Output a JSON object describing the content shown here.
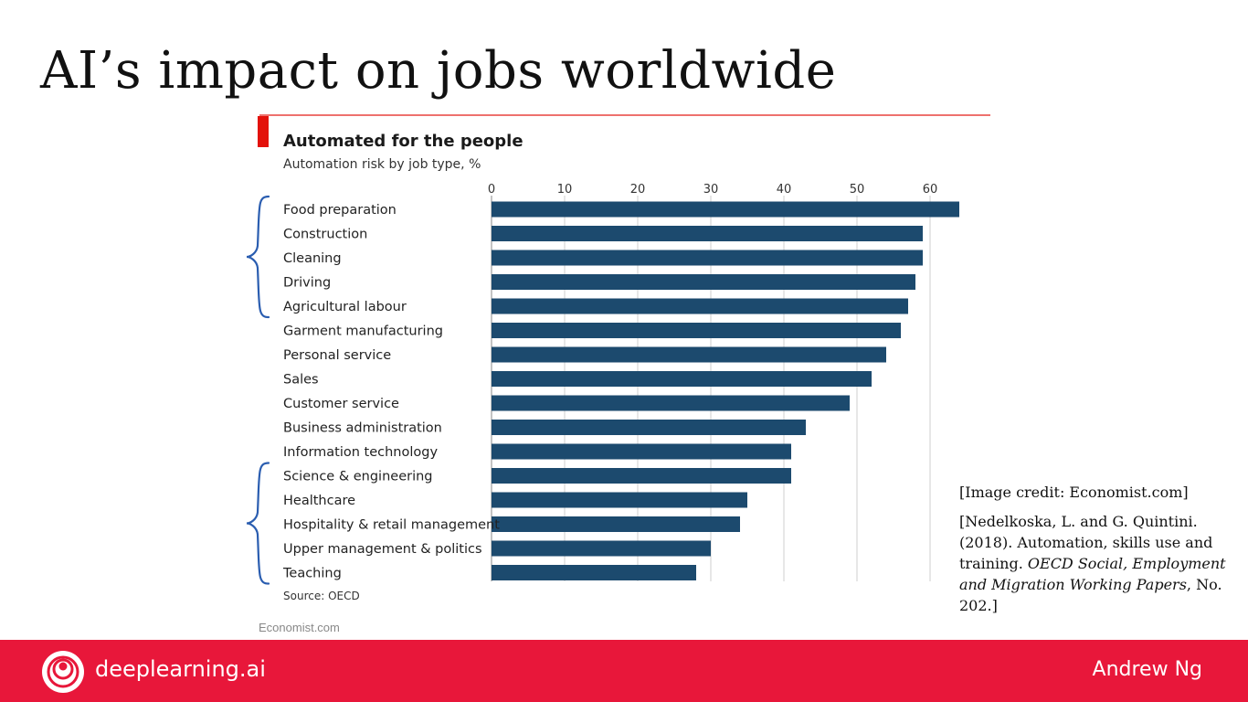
{
  "slide": {
    "title": "AI’s impact on jobs worldwide",
    "credit": "[Image credit: Economist.com]",
    "citation": {
      "before": "[Nedelkoska, L. and G. Quintini. (2018). Automation, skills use and training.",
      "journal": "OECD Social, Employment and Migration Working Papers",
      "after": ", No. 202.]"
    }
  },
  "footer": {
    "brand": "deeplearning.ai",
    "author": "Andrew Ng",
    "logo_icon": "deeplearning-ai-logo-icon"
  },
  "economist_mark": "Economist.com",
  "colors": {
    "bar": "#1c4a6e",
    "accent": "#e3120b",
    "footer": "#e8173a",
    "bracket": "#2a5db0"
  },
  "chart_data": {
    "type": "bar",
    "orientation": "horizontal",
    "title": "Automated for the people",
    "subtitle": "Automation risk by job type, %",
    "source": "Source: OECD",
    "xlim": [
      0,
      70
    ],
    "ticks": [
      0,
      10,
      20,
      30,
      40,
      50,
      60
    ],
    "grid": true,
    "categories": [
      "Food preparation",
      "Construction",
      "Cleaning",
      "Driving",
      "Agricultural labour",
      "Garment manufacturing",
      "Personal service",
      "Sales",
      "Customer service",
      "Business administration",
      "Information technology",
      "Science & engineering",
      "Healthcare",
      "Hospitality & retail management",
      "Upper management & politics",
      "Teaching"
    ],
    "values": [
      64,
      59,
      59,
      58,
      57,
      56,
      54,
      52,
      49,
      43,
      41,
      41,
      35,
      34,
      30,
      28
    ],
    "annotations": [
      {
        "type": "bracket",
        "from": 0,
        "to": 4
      },
      {
        "type": "bracket",
        "from": 11,
        "to": 15
      }
    ]
  }
}
